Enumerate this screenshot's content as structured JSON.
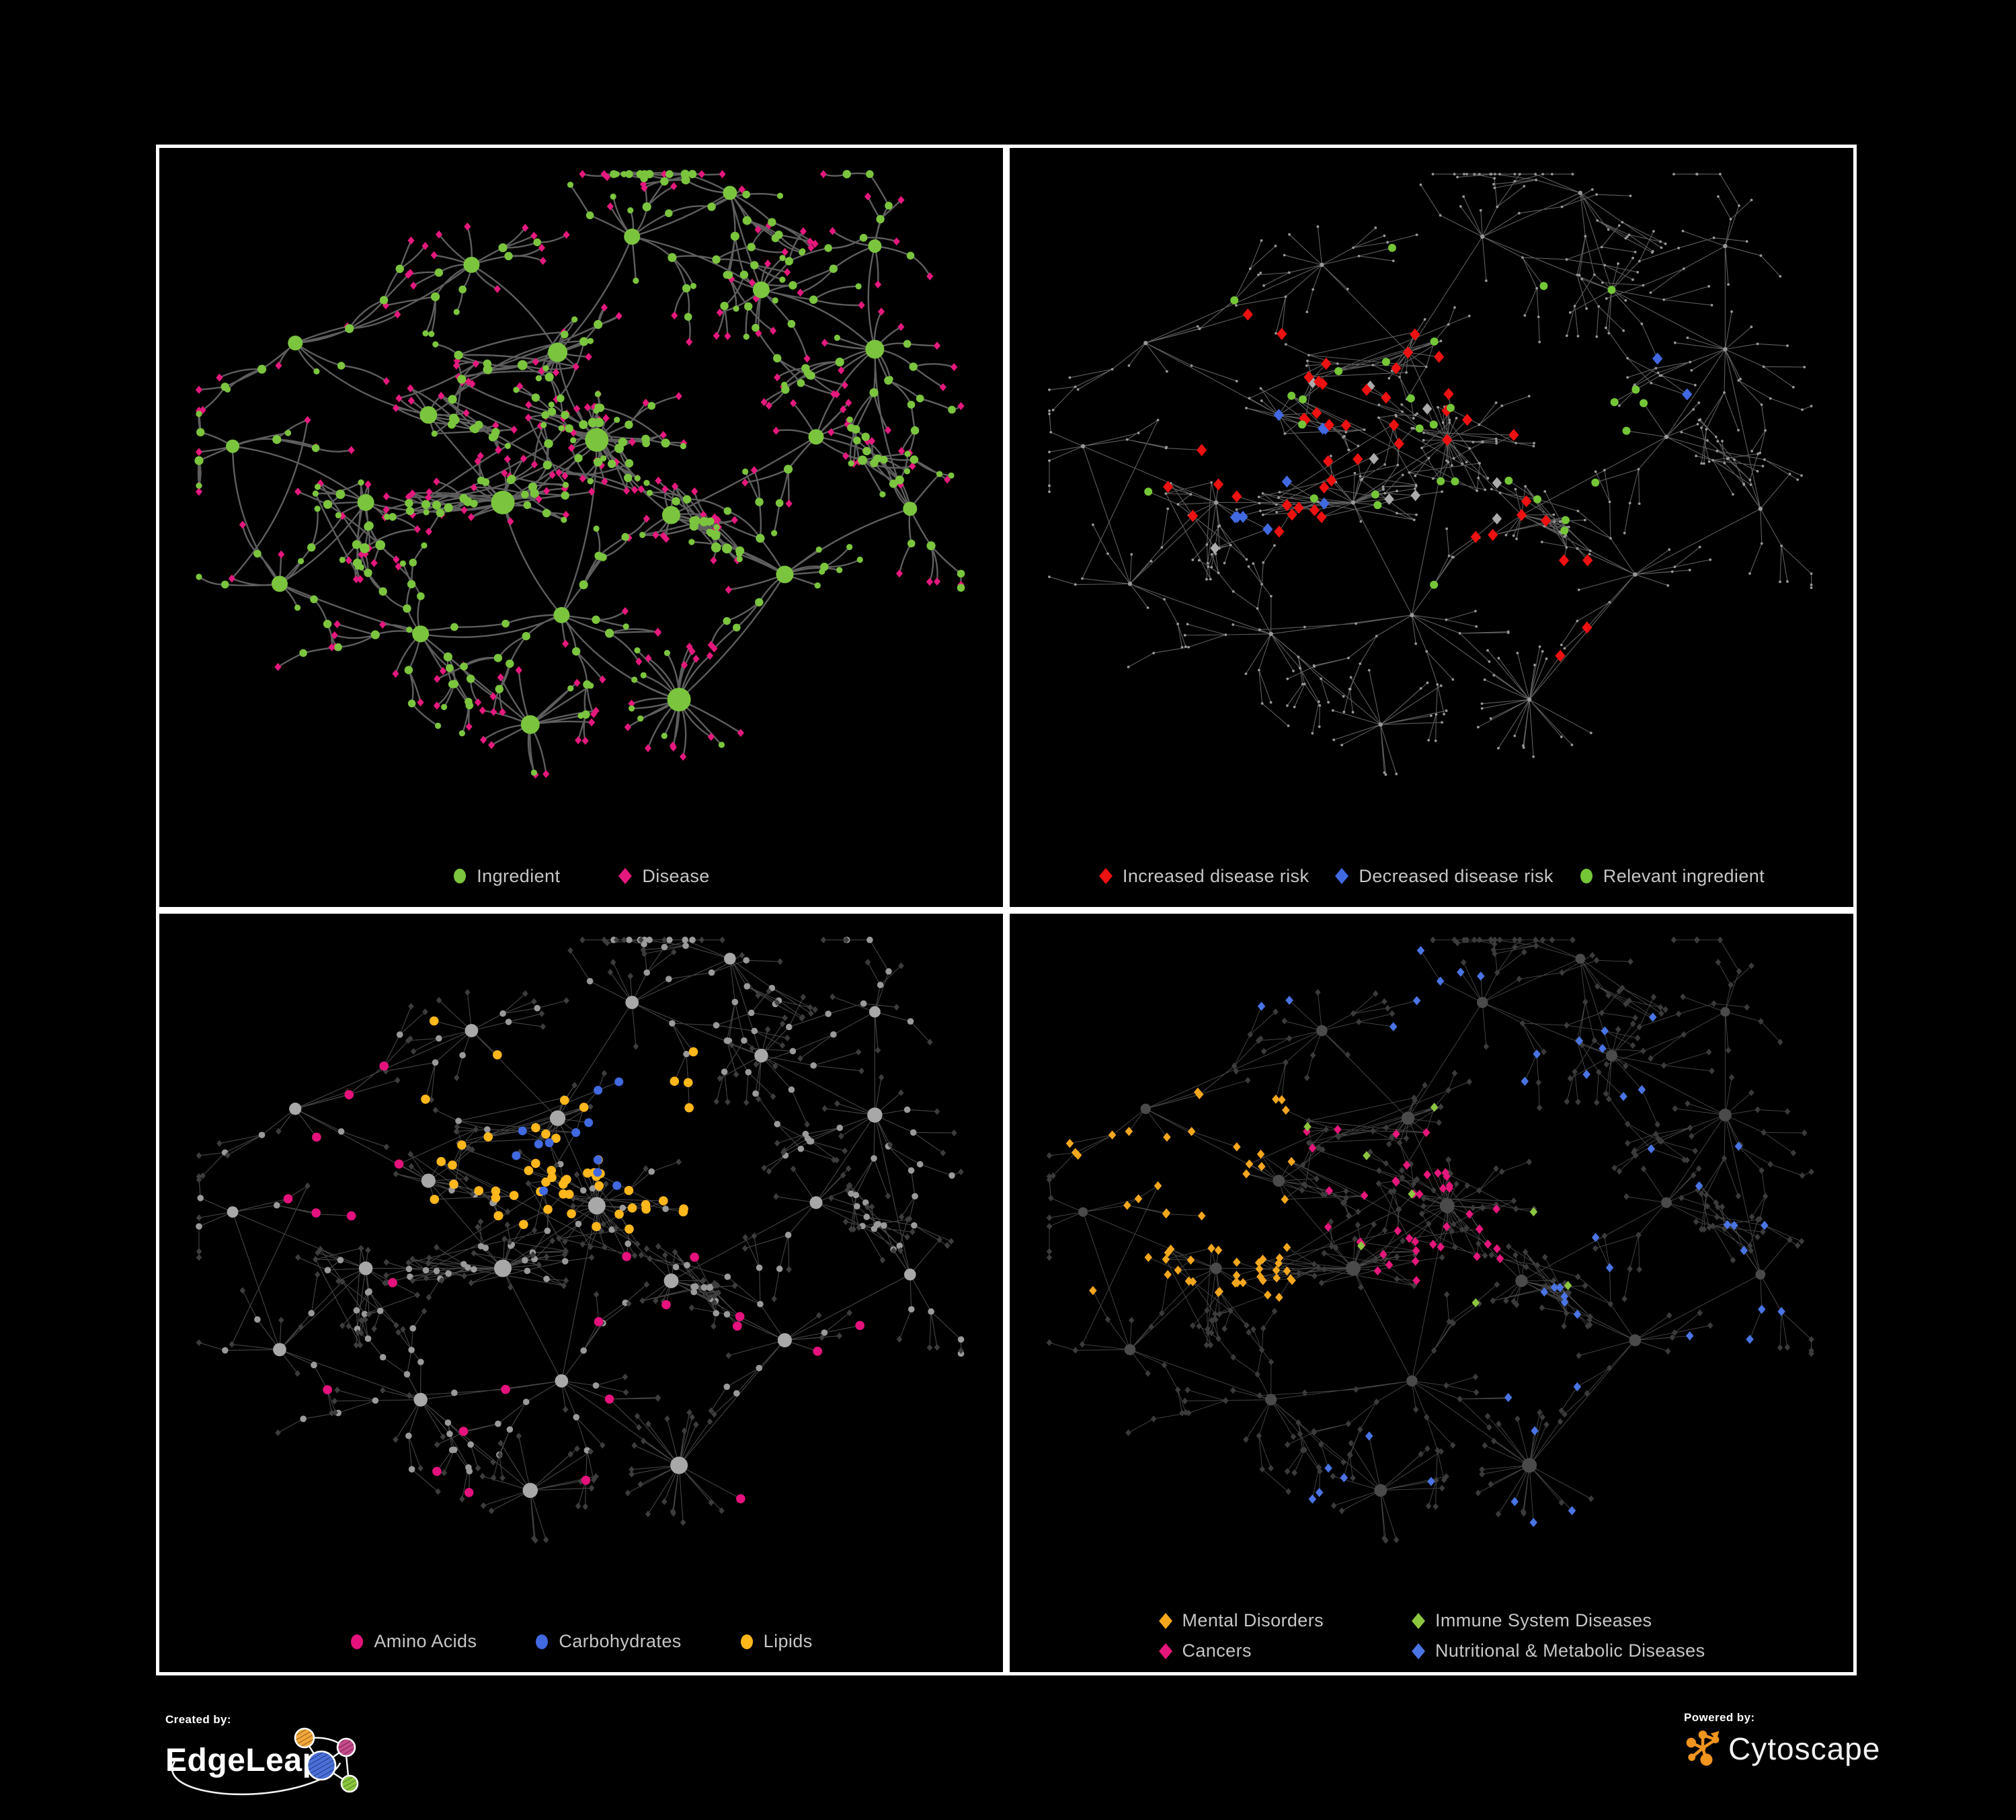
{
  "page": {
    "background": "#000000",
    "frame_color": "#ffffff",
    "legend_text_color": "#C6C6C6"
  },
  "panels": [
    {
      "id": "ingredient-disease",
      "legend": [
        {
          "shape": "circle",
          "color": "#7BC53E",
          "label": "Ingredient"
        },
        {
          "shape": "diamond",
          "color": "#E5197D",
          "label": "Disease"
        }
      ]
    },
    {
      "id": "disease-risk",
      "legend": [
        {
          "shape": "diamond",
          "color": "#ED1111",
          "label": "Increased disease risk"
        },
        {
          "shape": "diamond",
          "color": "#4169E1",
          "label": "Decreased disease risk"
        },
        {
          "shape": "circle",
          "color": "#74C637",
          "label": "Relevant ingredient"
        }
      ]
    },
    {
      "id": "macronutrients",
      "legend": [
        {
          "shape": "circle",
          "color": "#E5127D",
          "label": "Amino Acids"
        },
        {
          "shape": "circle",
          "color": "#4169E1",
          "label": "Carbohydrates"
        },
        {
          "shape": "circle",
          "color": "#FFB71C",
          "label": "Lipids"
        }
      ]
    },
    {
      "id": "disease-categories",
      "legend": [
        {
          "shape": "diamond",
          "color": "#F4A71E",
          "label": "Mental Disorders"
        },
        {
          "shape": "diamond",
          "color": "#8CC63F",
          "label": "Immune System Diseases"
        },
        {
          "shape": "diamond",
          "color": "#E5177B",
          "label": "Cancers"
        },
        {
          "shape": "diamond",
          "color": "#4A74E4",
          "label": "Nutritional & Metabolic Diseases"
        }
      ]
    }
  ],
  "panel_styles": [
    {
      "edge": "#666666",
      "edge_width": 2.4,
      "edge_opacity": 0.92,
      "ingredient": "#7BC53E",
      "disease": "#E5197D"
    },
    {
      "edge": "#6F6F6F",
      "edge_width": 1.1,
      "edge_opacity": 0.85,
      "base_node": "#989898",
      "increased": "#ED1111",
      "decreased": "#4169E1",
      "neutral": "#ABABAB",
      "relevant": "#74C637"
    },
    {
      "edge": "#7E7E7E",
      "edge_width": 1.1,
      "edge_opacity": 0.55,
      "other_node": "#3D3D3D",
      "hub_node": "#A8A8A8",
      "amino": "#E5127D",
      "carb": "#4169E1",
      "lipid": "#FFB71C"
    },
    {
      "edge": "#8F8F8F",
      "edge_width": 0.9,
      "edge_opacity": 0.5,
      "other_node": "#3B3B3B",
      "hub_node": "#4A4A4A",
      "mental": "#F4A71E",
      "immune": "#8CC63F",
      "cancer": "#E5177B",
      "metabolic": "#4A74E4"
    }
  ],
  "footer": {
    "created_by_label": "Created by:",
    "created_by_brand": "EdgeLeap",
    "powered_by_label": "Powered by:",
    "powered_by_brand": "Cytoscape"
  },
  "icons": {
    "edgeleap_logo": "network-of-hatched-circles-with-swoosh",
    "edgeleap_circle_colors": [
      "#F2A73B",
      "#C64B8C",
      "#4A6FD8",
      "#8BC63F"
    ],
    "cytoscape_icon": "orange-molecule-network",
    "cytoscape_orange": "#F0941E"
  }
}
